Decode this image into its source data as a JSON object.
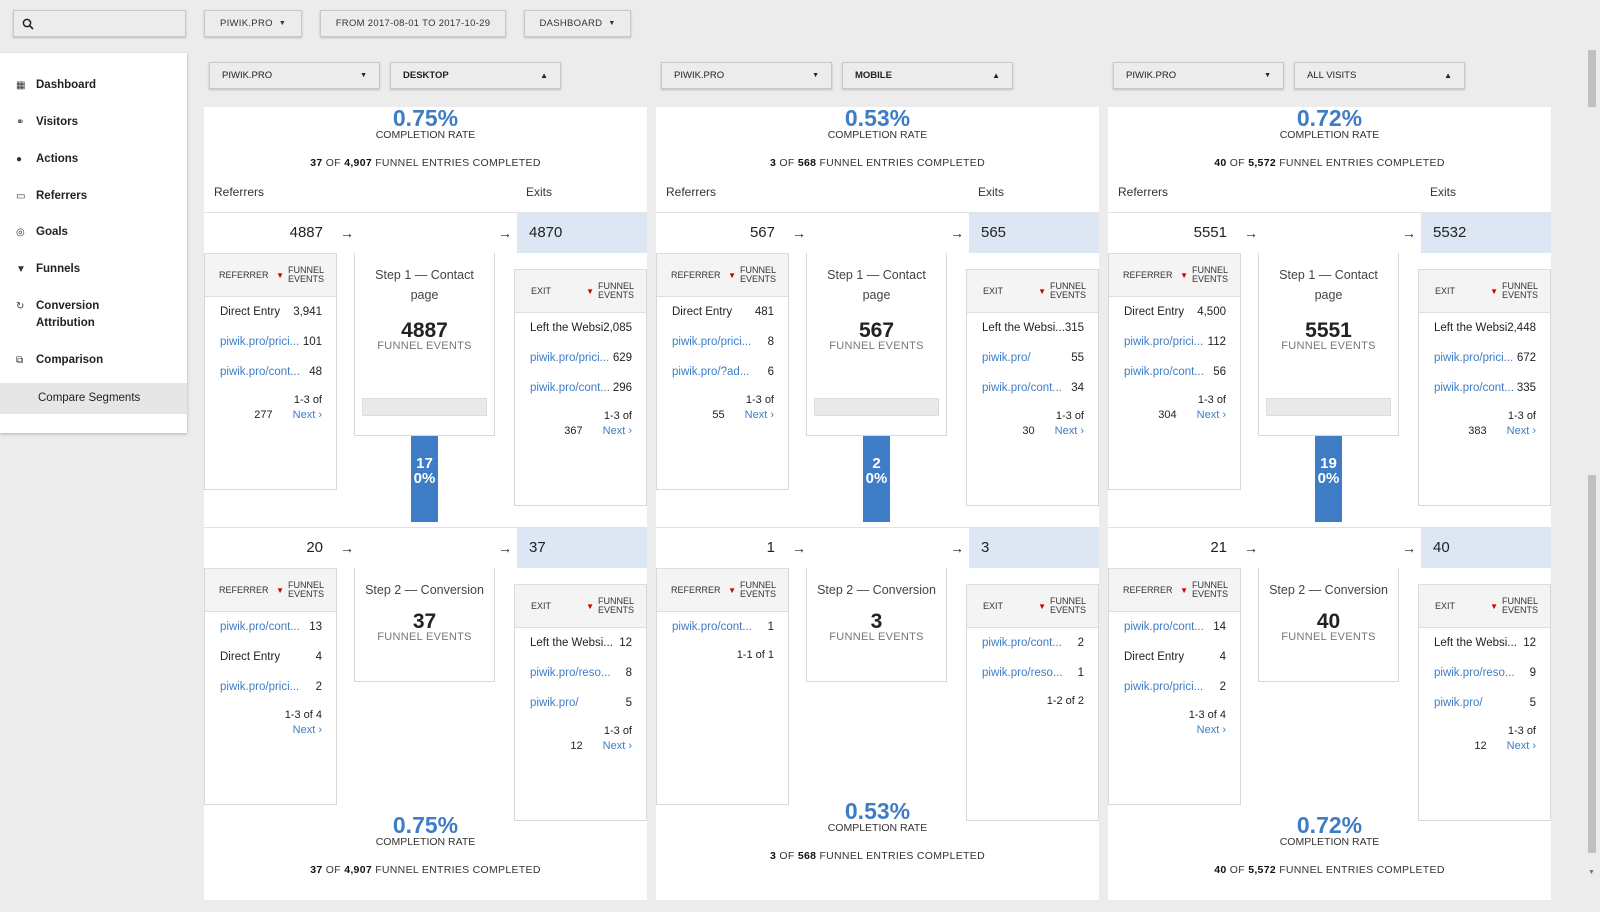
{
  "topbar": {
    "site": "PIWIK.PRO",
    "date_range": "FROM 2017-08-01 TO 2017-10-29",
    "dashboard": "DASHBOARD"
  },
  "sidebar": {
    "items": [
      {
        "label": "Dashboard",
        "icon": "grid-icon"
      },
      {
        "label": "Visitors",
        "icon": "binoculars-icon"
      },
      {
        "label": "Actions",
        "icon": "bell-icon"
      },
      {
        "label": "Referrers",
        "icon": "window-icon"
      },
      {
        "label": "Goals",
        "icon": "target-icon"
      },
      {
        "label": "Funnels",
        "icon": "funnel-icon"
      },
      {
        "label": "Conversion Attribution",
        "icon": "refresh-icon"
      },
      {
        "label": "Comparison",
        "icon": "compare-icon"
      }
    ],
    "sub_item": "Compare Segments"
  },
  "labels": {
    "completion_rate": "COMPLETION RATE",
    "of": "OF",
    "funnel_entries_completed": "FUNNEL ENTRIES COMPLETED",
    "referrers": "Referrers",
    "exits": "Exits",
    "referrer_col": "REFERRER",
    "exit_col": "EXIT",
    "funnel_events_col": "FUNNEL EVENTS",
    "funnel_events": "FUNNEL EVENTS",
    "next": "Next ›",
    "arrow": "→"
  },
  "columns": [
    {
      "site": "PIWIK.PRO",
      "segment": "DESKTOP",
      "rate": "0.75%",
      "completed": "37",
      "entries": "4,907",
      "steps": [
        {
          "in": "4887",
          "out": "4870",
          "title": "Step 1 — Contact page",
          "count": "4887",
          "refs": [
            {
              "k": "Direct Entry",
              "v": "3,941",
              "link": false
            },
            {
              "k": "piwik.pro/prici...",
              "v": "101",
              "link": true
            },
            {
              "k": "piwik.pro/cont...",
              "v": "48",
              "link": true
            }
          ],
          "ref_pager": "1-3 of",
          "ref_total": "277",
          "exits": [
            {
              "k": "Left the Websi...",
              "v": "2,085",
              "link": false
            },
            {
              "k": "piwik.pro/prici...",
              "v": "629",
              "link": true
            },
            {
              "k": "piwik.pro/cont...",
              "v": "296",
              "link": true
            }
          ],
          "exit_pager": "1-3 of",
          "exit_total": "367",
          "drop": "17",
          "drop_pct": "0%"
        },
        {
          "in": "20",
          "out": "37",
          "title": "Step 2 — Conversion",
          "count": "37",
          "refs": [
            {
              "k": "piwik.pro/cont...",
              "v": "13",
              "link": true
            },
            {
              "k": "Direct Entry",
              "v": "4",
              "link": false
            },
            {
              "k": "piwik.pro/prici...",
              "v": "2",
              "link": true
            }
          ],
          "ref_pager": "1-3 of 4",
          "ref_total": "",
          "exits": [
            {
              "k": "Left the Websi...",
              "v": "12",
              "link": false
            },
            {
              "k": "piwik.pro/reso...",
              "v": "8",
              "link": true
            },
            {
              "k": "piwik.pro/",
              "v": "5",
              "link": true
            }
          ],
          "exit_pager": "1-3 of",
          "exit_total": "12"
        }
      ]
    },
    {
      "site": "PIWIK.PRO",
      "segment": "MOBILE",
      "rate": "0.53%",
      "completed": "3",
      "entries": "568",
      "steps": [
        {
          "in": "567",
          "out": "565",
          "title": "Step 1 — Contact page",
          "count": "567",
          "refs": [
            {
              "k": "Direct Entry",
              "v": "481",
              "link": false
            },
            {
              "k": "piwik.pro/prici...",
              "v": "8",
              "link": true
            },
            {
              "k": "piwik.pro/?ad...",
              "v": "6",
              "link": true
            }
          ],
          "ref_pager": "1-3 of",
          "ref_total": "55",
          "exits": [
            {
              "k": "Left the Websi...",
              "v": "315",
              "link": false
            },
            {
              "k": "piwik.pro/",
              "v": "55",
              "link": true
            },
            {
              "k": "piwik.pro/cont...",
              "v": "34",
              "link": true
            }
          ],
          "exit_pager": "1-3 of",
          "exit_total": "30",
          "drop": "2",
          "drop_pct": "0%"
        },
        {
          "in": "1",
          "out": "3",
          "title": "Step 2 — Conversion",
          "count": "3",
          "refs": [
            {
              "k": "piwik.pro/cont...",
              "v": "1",
              "link": true
            }
          ],
          "ref_pager": "1-1 of 1",
          "ref_total": "",
          "exits": [
            {
              "k": "piwik.pro/cont...",
              "v": "2",
              "link": true
            },
            {
              "k": "piwik.pro/reso...",
              "v": "1",
              "link": true
            }
          ],
          "exit_pager": "1-2 of 2",
          "exit_total": ""
        }
      ]
    },
    {
      "site": "PIWIK.PRO",
      "segment": "ALL VISITS",
      "rate": "0.72%",
      "completed": "40",
      "entries": "5,572",
      "steps": [
        {
          "in": "5551",
          "out": "5532",
          "title": "Step 1 — Contact page",
          "count": "5551",
          "refs": [
            {
              "k": "Direct Entry",
              "v": "4,500",
              "link": false
            },
            {
              "k": "piwik.pro/prici...",
              "v": "112",
              "link": true
            },
            {
              "k": "piwik.pro/cont...",
              "v": "56",
              "link": true
            }
          ],
          "ref_pager": "1-3 of",
          "ref_total": "304",
          "exits": [
            {
              "k": "Left the Websi...",
              "v": "2,448",
              "link": false
            },
            {
              "k": "piwik.pro/prici...",
              "v": "672",
              "link": true
            },
            {
              "k": "piwik.pro/cont...",
              "v": "335",
              "link": true
            }
          ],
          "exit_pager": "1-3 of",
          "exit_total": "383",
          "drop": "19",
          "drop_pct": "0%"
        },
        {
          "in": "21",
          "out": "40",
          "title": "Step 2 — Conversion",
          "count": "40",
          "refs": [
            {
              "k": "piwik.pro/cont...",
              "v": "14",
              "link": true
            },
            {
              "k": "Direct Entry",
              "v": "4",
              "link": false
            },
            {
              "k": "piwik.pro/prici...",
              "v": "2",
              "link": true
            }
          ],
          "ref_pager": "1-3 of 4",
          "ref_total": "",
          "exits": [
            {
              "k": "Left the Websi...",
              "v": "12",
              "link": false
            },
            {
              "k": "piwik.pro/reso...",
              "v": "9",
              "link": true
            },
            {
              "k": "piwik.pro/",
              "v": "5",
              "link": true
            }
          ],
          "exit_pager": "1-3 of",
          "exit_total": "12"
        }
      ]
    }
  ]
}
